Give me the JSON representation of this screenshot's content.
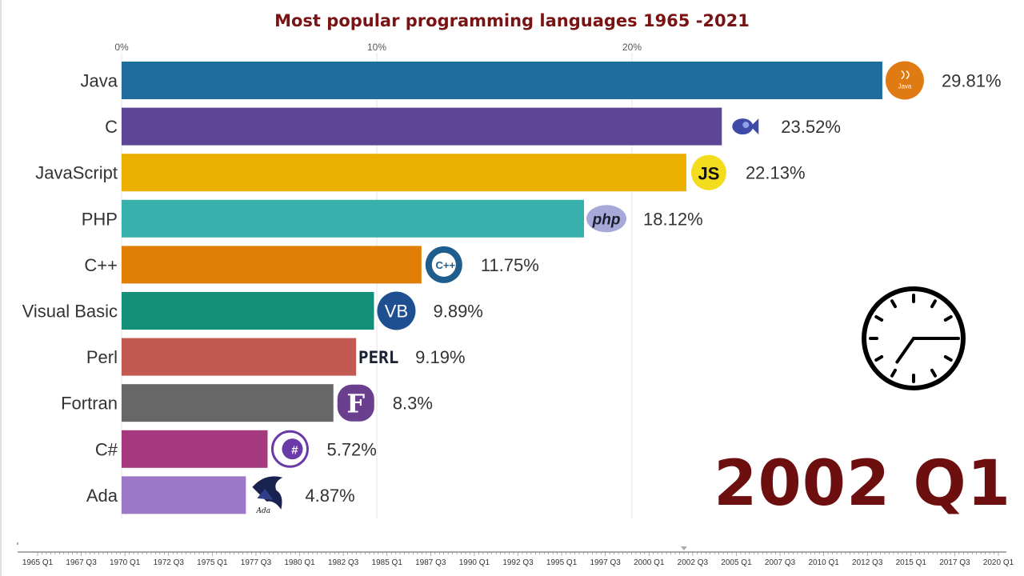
{
  "title": "Most popular programming languages 1965 -2021",
  "period": "2002 Q1",
  "chart_data": {
    "type": "bar",
    "orientation": "horizontal",
    "title": "Most popular programming languages 1965 -2021",
    "x_ticks": [
      "0%",
      "10%",
      "20%"
    ],
    "x_tick_values": [
      0,
      10,
      20
    ],
    "xlim": [
      0,
      29.81
    ],
    "grid": true,
    "categories": [
      "Java",
      "C",
      "JavaScript",
      "PHP",
      "C++",
      "Visual Basic",
      "Perl",
      "Fortran",
      "C#",
      "Ada"
    ],
    "values": [
      29.81,
      23.52,
      22.13,
      18.12,
      11.75,
      9.89,
      9.19,
      8.3,
      5.72,
      4.87
    ],
    "value_labels": [
      "29.81%",
      "23.52%",
      "22.13%",
      "18.12%",
      "11.75%",
      "9.89%",
      "9.19%",
      "8.3%",
      "5.72%",
      "4.87%"
    ],
    "colors": [
      "#1f6c9e",
      "#5e4596",
      "#ecb000",
      "#38b0ab",
      "#e17e06",
      "#14907a",
      "#c25a52",
      "#676767",
      "#a43a7d",
      "#9d78c8"
    ],
    "icons": [
      "java-logo",
      "c-logo",
      "javascript-logo",
      "php-logo",
      "cpp-logo",
      "visual-basic-logo",
      "perl-logo",
      "fortran-logo",
      "csharp-logo",
      "ada-logo"
    ],
    "icon_texts": [
      "Java",
      "",
      "JS",
      "php",
      "C++",
      "VB",
      "PERL",
      "F",
      "#",
      "Ada"
    ]
  },
  "timeline": {
    "ticks": [
      "1965 Q1",
      "1967 Q3",
      "1970 Q1",
      "1972 Q3",
      "1975 Q1",
      "1977 Q3",
      "1980 Q1",
      "1982 Q3",
      "1985 Q1",
      "1987 Q3",
      "1990 Q1",
      "1992 Q3",
      "1995 Q1",
      "1997 Q3",
      "2000 Q1",
      "2002 Q3",
      "2005 Q1",
      "2007 Q3",
      "2010 Q1",
      "2012 Q3",
      "2015 Q1",
      "2017 Q3",
      "2020 Q1"
    ],
    "current": "2002 Q1"
  },
  "clock": {
    "icon": "clock-icon",
    "hour_hand_angle_deg": 215,
    "minute_hand_angle_deg": 90
  }
}
